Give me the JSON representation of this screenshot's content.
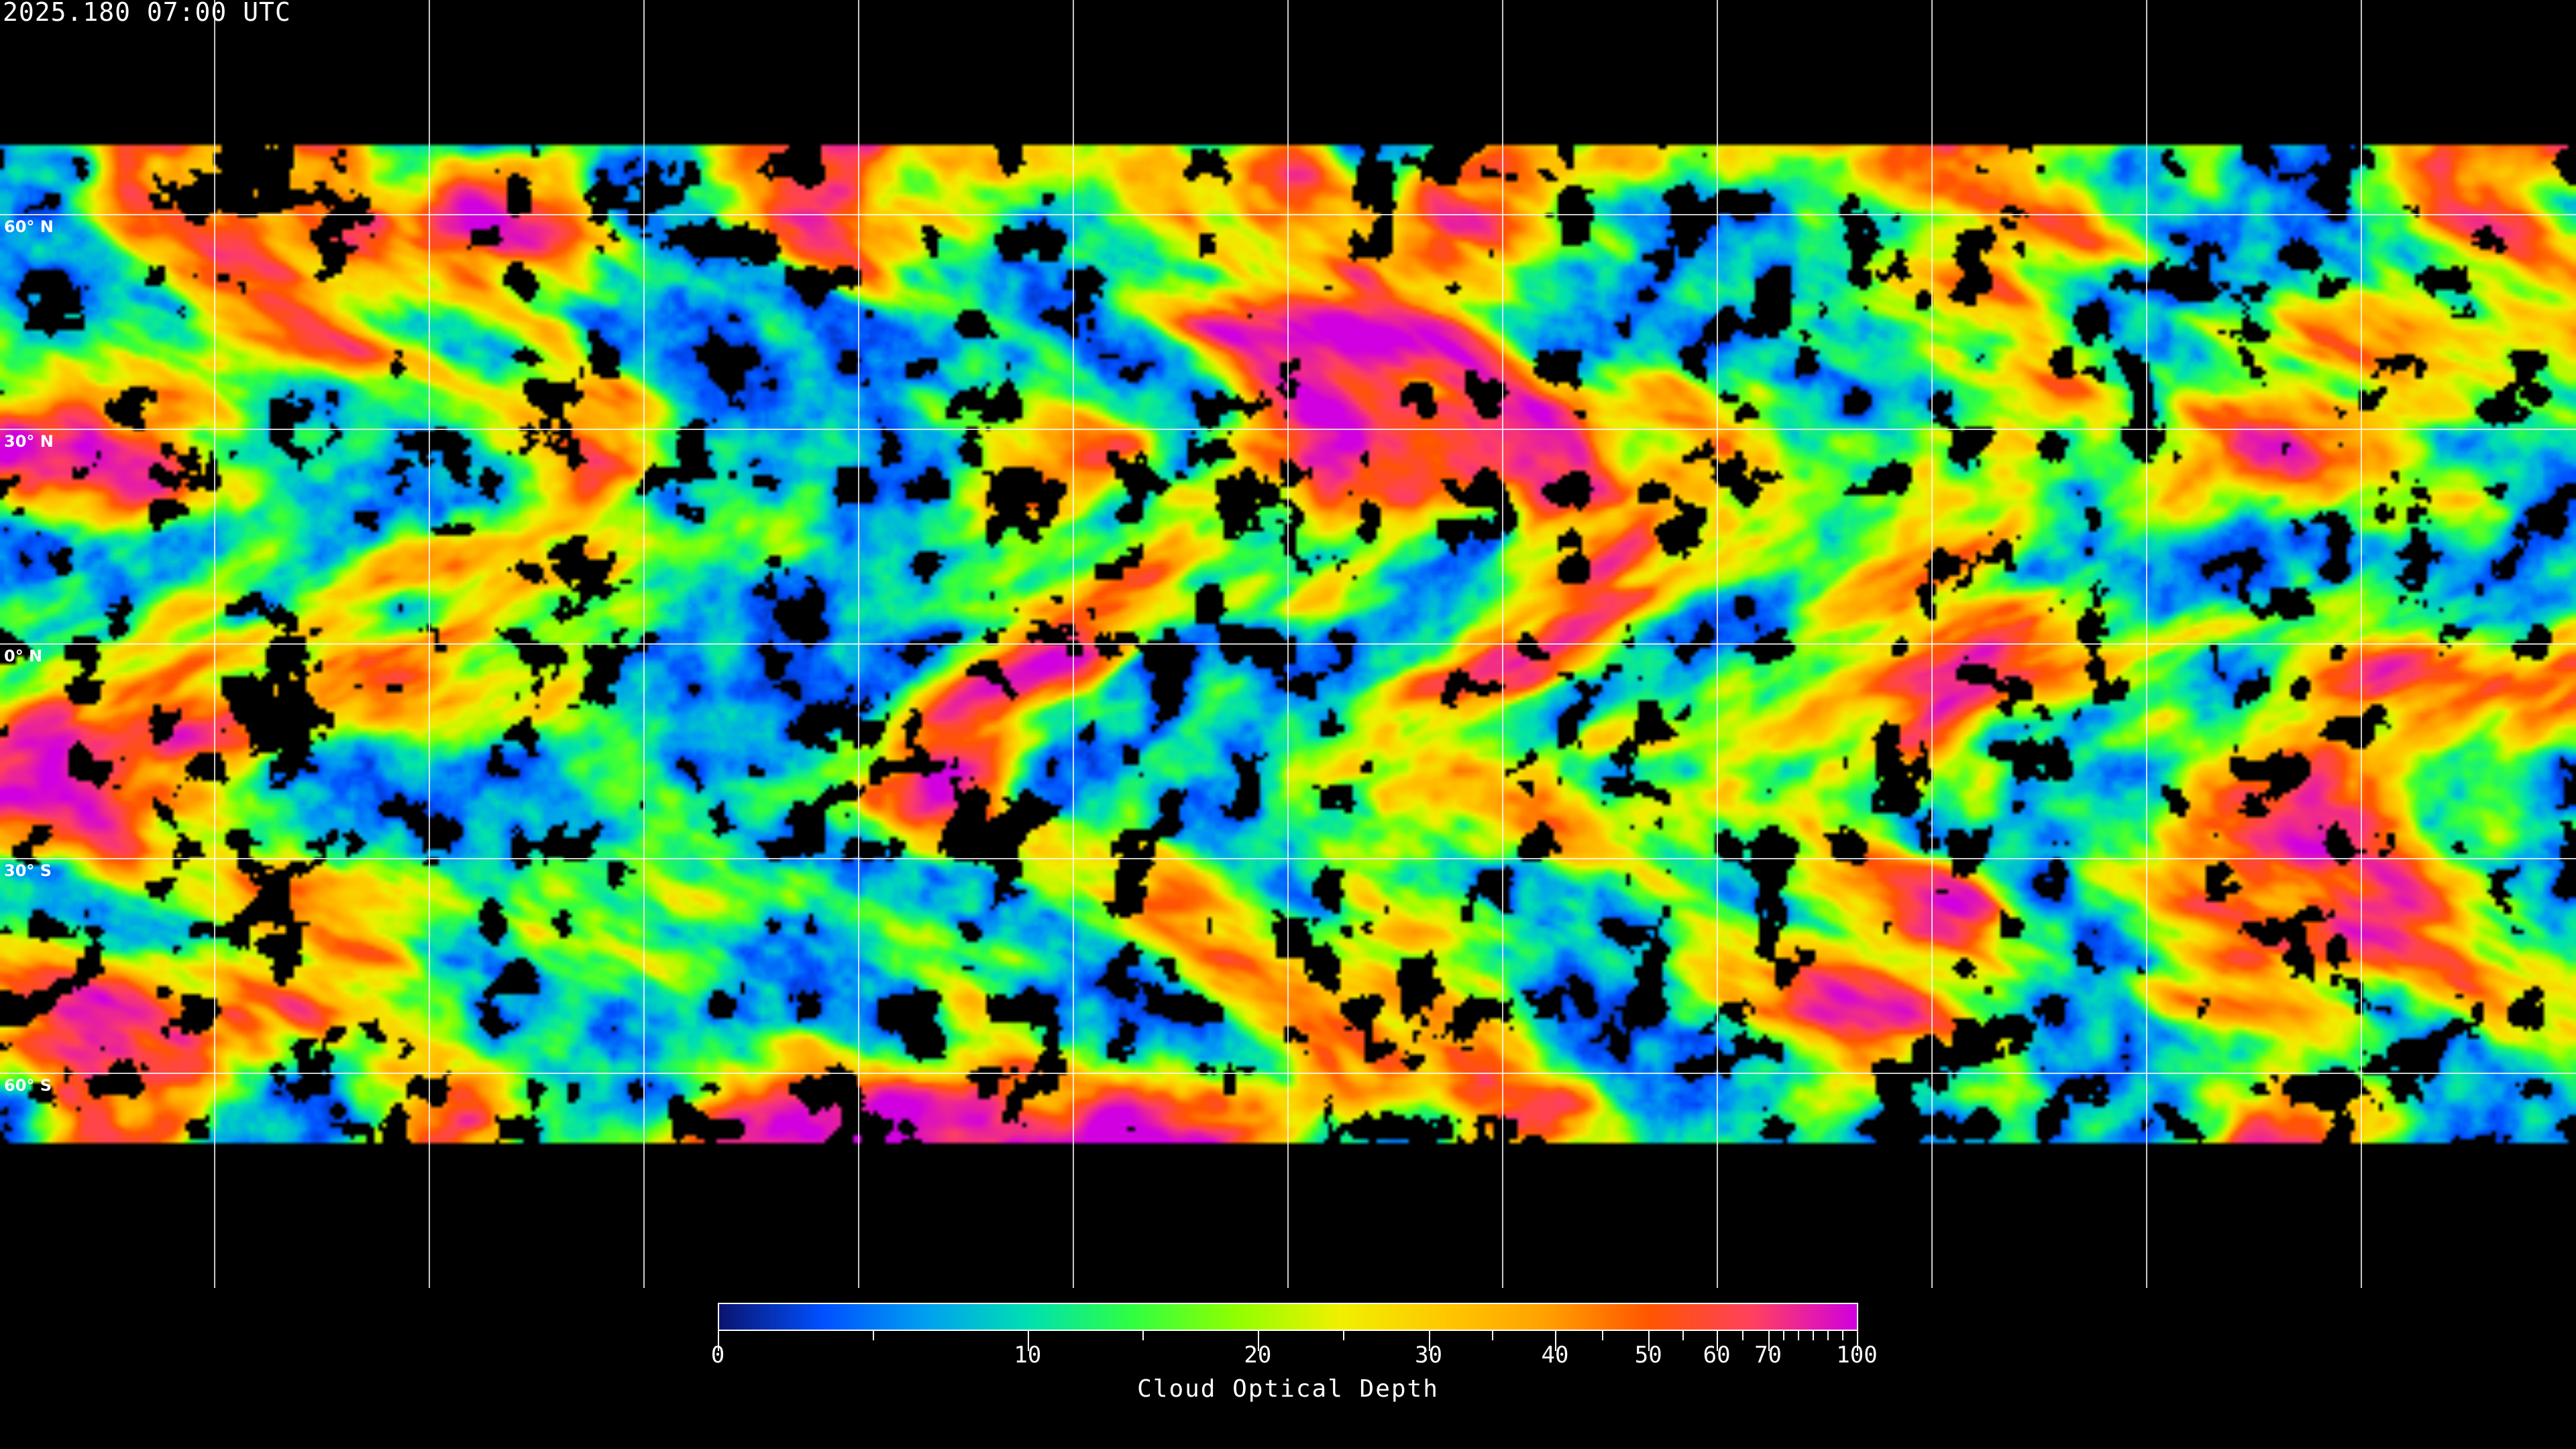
{
  "header": {
    "timestamp": "2025.180 07:00 UTC"
  },
  "map": {
    "projection": "equirectangular",
    "graticule_spacing_deg": 30,
    "lat_labels": [
      "60° N",
      "30° N",
      "0° N",
      "30° S",
      "60° S"
    ],
    "lat_values": [
      60,
      30,
      0,
      -30,
      -60
    ],
    "data_coverage_lat": [
      70,
      -70
    ],
    "no_data_color": "#000000",
    "grid_color": "#ffffff",
    "coastline_color": "#ffffff"
  },
  "colorbar": {
    "title": "Cloud Optical Depth",
    "tick_labels": [
      "0",
      "10",
      "20",
      "30",
      "40",
      "50",
      "60",
      "70",
      "100"
    ],
    "tick_values": [
      0,
      10,
      20,
      30,
      40,
      50,
      60,
      70,
      100
    ],
    "minor_tick_values": [
      5,
      15,
      25,
      35,
      45,
      55,
      65,
      75,
      80,
      85,
      90,
      95
    ],
    "range": [
      0,
      100
    ],
    "colors": [
      "#0a1470",
      "#0050ff",
      "#00a0f0",
      "#00e0b0",
      "#30ff40",
      "#90ff00",
      "#f0f000",
      "#ffc800",
      "#ffa000",
      "#ff5500",
      "#ff4060",
      "#d000e0"
    ]
  }
}
